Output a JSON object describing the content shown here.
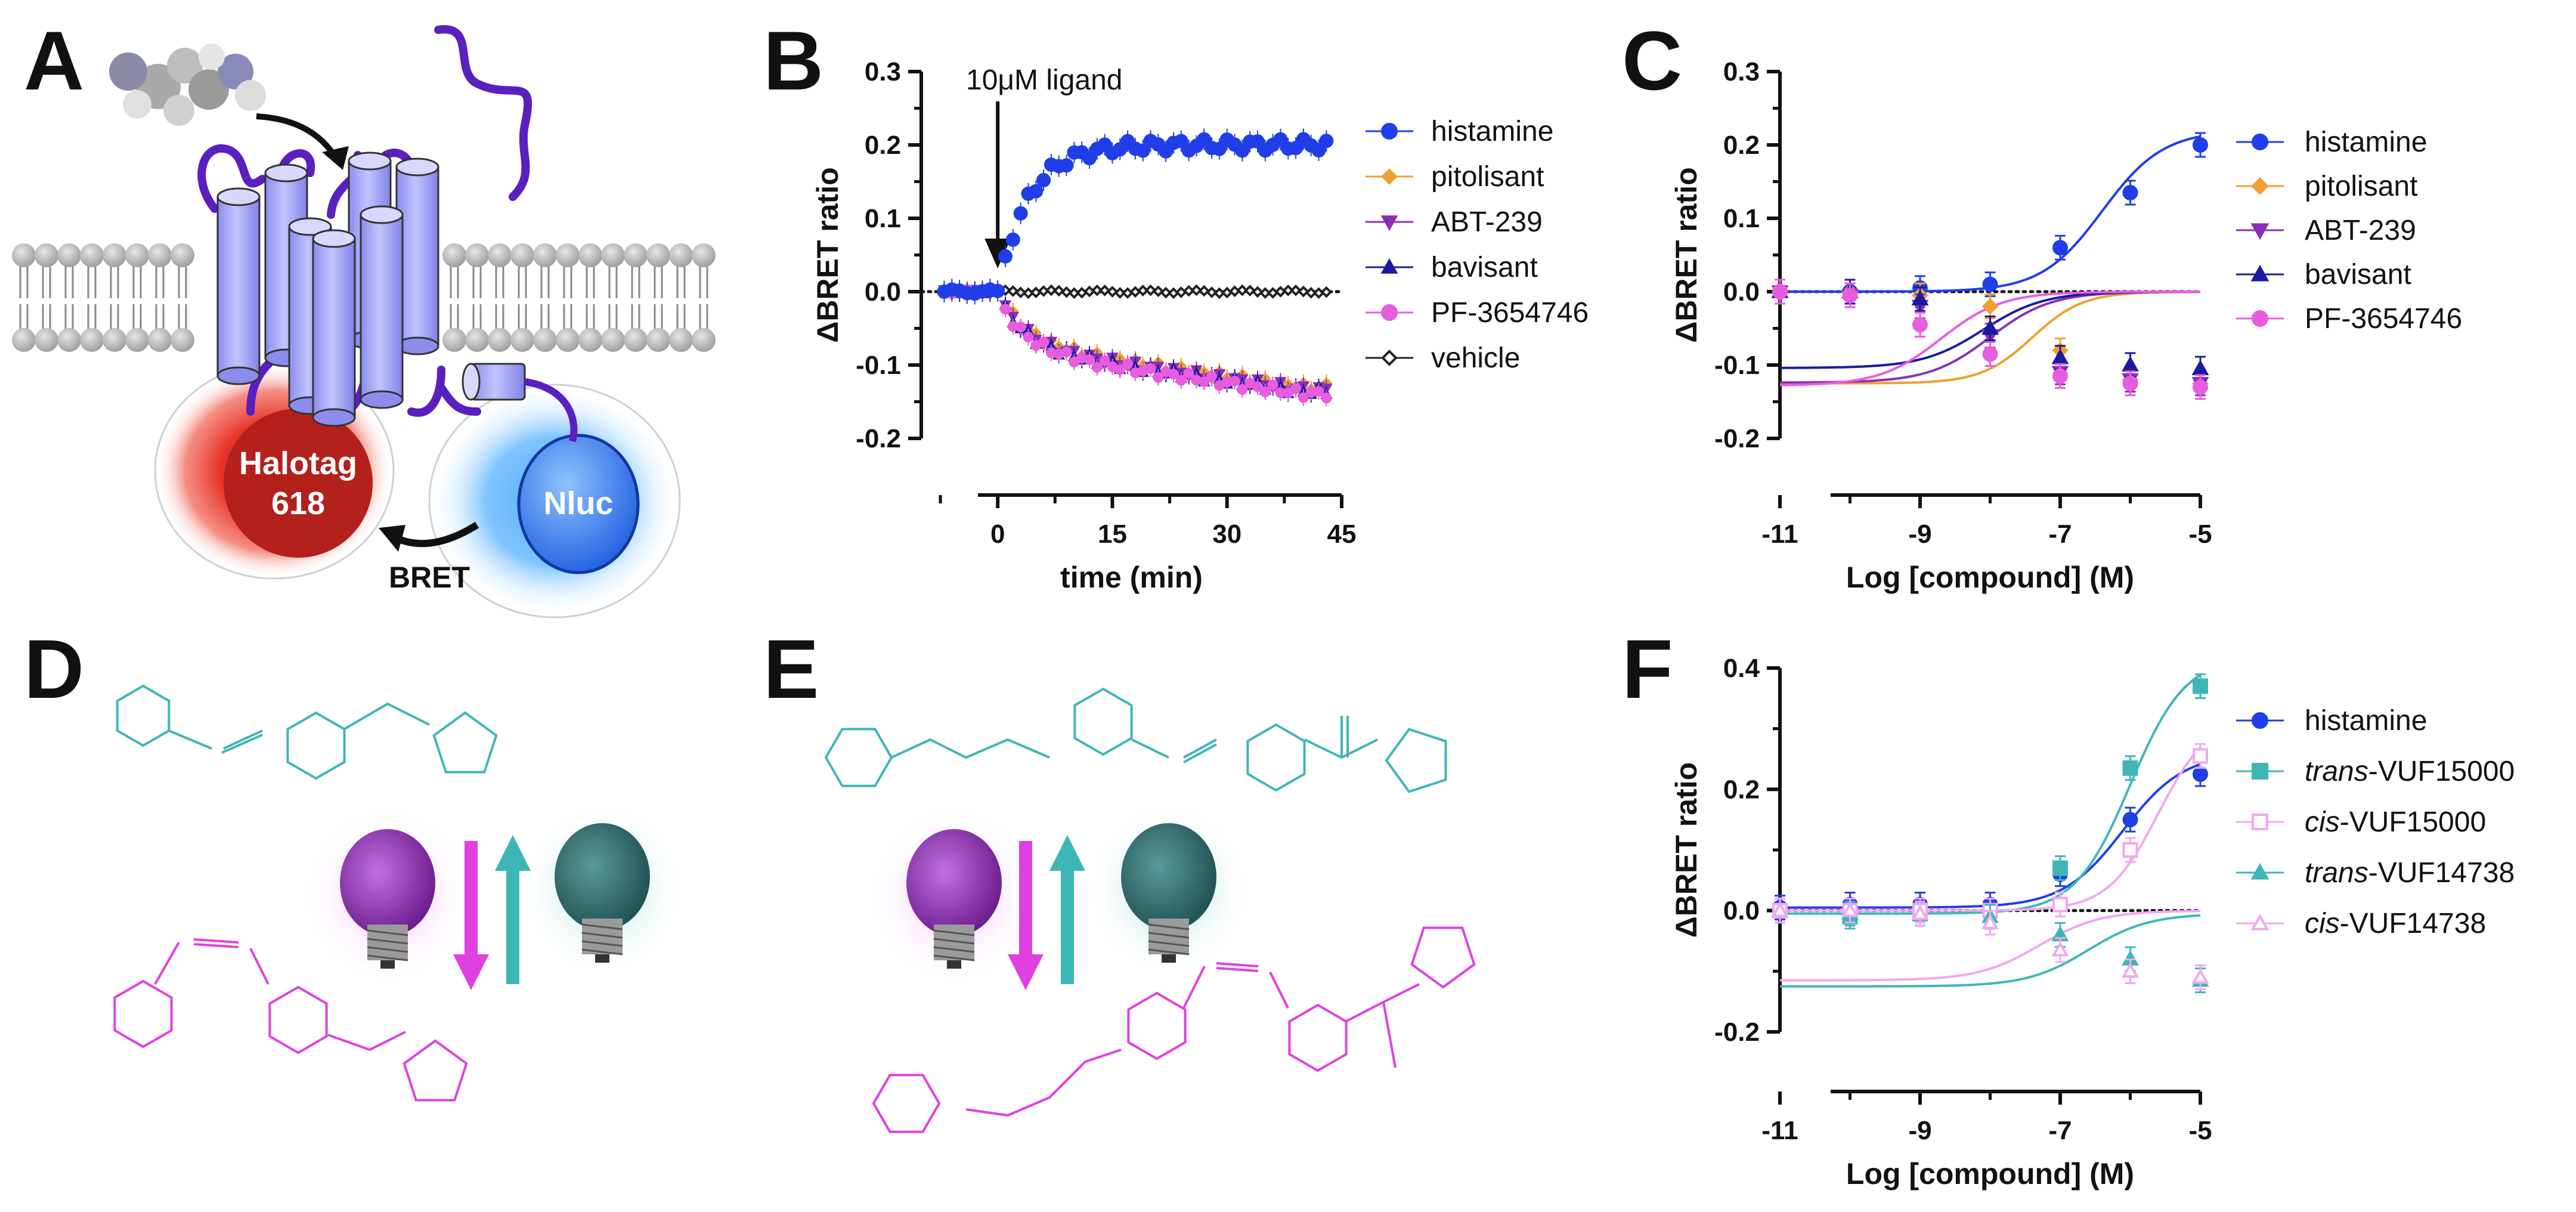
{
  "panels": {
    "A": {
      "letter": "A",
      "labels": {
        "halotag_line1": "Halotag",
        "halotag_line2": "618",
        "nluc": "Nluc",
        "bret": "BRET"
      }
    },
    "D": {
      "letter": "D"
    },
    "E": {
      "letter": "E"
    }
  },
  "colors": {
    "histamine": "#1f3ee8",
    "pitolisant": "#f0a030",
    "abt239": "#8a2fb8",
    "bavisant": "#1a1aa0",
    "pf3654746": "#e85ce0",
    "vehicle": "#222222",
    "teal": "#3fb6b6",
    "magenta": "#e040e0",
    "pink_light": "#f0a8f0",
    "receptor": "#a8a8ff",
    "loop": "#5a1fbf"
  },
  "chart_data": [
    {
      "panel": "B",
      "letter": "B",
      "type": "scatter",
      "xlabel": "time (min)",
      "ylabel": "ΔBRET ratio",
      "xlim": [
        -10,
        45
      ],
      "ylim": [
        -0.2,
        0.3
      ],
      "xticks": [
        0,
        15,
        30,
        45
      ],
      "yticks": [
        -0.2,
        -0.1,
        0.0,
        0.1,
        0.2,
        0.3
      ],
      "ytick_labels": [
        "-0.2",
        "-0.1",
        "0.0",
        "0.1",
        "0.2",
        "0.3"
      ],
      "annotation": "10μM ligand",
      "annotation_x": 0,
      "reference_line_y": 0,
      "series": [
        {
          "name": "histamine",
          "color_key": "histamine",
          "marker": "circle",
          "agonist": true
        },
        {
          "name": "pitolisant",
          "color_key": "pitolisant",
          "marker": "diamond",
          "agonist": false
        },
        {
          "name": "ABT-239",
          "color_key": "abt239",
          "marker": "triangle-down",
          "agonist": false
        },
        {
          "name": "bavisant",
          "color_key": "bavisant",
          "marker": "triangle-up",
          "agonist": false
        },
        {
          "name": "PF-3654746",
          "color_key": "pf3654746",
          "marker": "circle",
          "agonist": false
        },
        {
          "name": "vehicle",
          "color_key": "vehicle",
          "marker": "open-diamond",
          "agonist": false
        }
      ],
      "plateau": {
        "histamine": 0.2,
        "inverse": -0.13,
        "vehicle": 0.0
      }
    },
    {
      "panel": "C",
      "letter": "C",
      "type": "line",
      "xlabel": "Log [compound] (M)",
      "ylabel": "ΔBRET ratio",
      "xlim": [
        -11,
        -5
      ],
      "ylim": [
        -0.2,
        0.3
      ],
      "xticks": [
        -11,
        -9,
        -7,
        -5
      ],
      "xtick_labels": [
        "-11",
        "-9",
        "-7",
        "-5"
      ],
      "yticks": [
        -0.2,
        -0.1,
        0.0,
        0.1,
        0.2,
        0.3
      ],
      "ytick_labels": [
        "-0.2",
        "-0.1",
        "0.0",
        "0.1",
        "0.2",
        "0.3"
      ],
      "reference_line_y": 0,
      "x": [
        -11,
        -10,
        -9,
        -8,
        -7,
        -6,
        -5
      ],
      "series": [
        {
          "name": "histamine",
          "color_key": "histamine",
          "marker": "circle",
          "values": [
            0.0,
            0.0,
            0.005,
            0.01,
            0.06,
            0.135,
            0.2
          ]
        },
        {
          "name": "pitolisant",
          "color_key": "pitolisant",
          "marker": "diamond",
          "values": [
            0.0,
            0.0,
            -0.005,
            -0.02,
            -0.08,
            -0.12,
            -0.125
          ]
        },
        {
          "name": "ABT-239",
          "color_key": "abt239",
          "marker": "triangle-down",
          "values": [
            0.0,
            -0.005,
            -0.02,
            -0.06,
            -0.11,
            -0.12,
            -0.125
          ]
        },
        {
          "name": "bavisant",
          "color_key": "bavisant",
          "marker": "triangle-up",
          "values": [
            0.0,
            0.0,
            -0.01,
            -0.05,
            -0.09,
            -0.1,
            -0.105
          ]
        },
        {
          "name": "PF-3654746",
          "color_key": "pf3654746",
          "marker": "circle",
          "values": [
            0.0,
            -0.005,
            -0.045,
            -0.085,
            -0.115,
            -0.125,
            -0.13
          ]
        }
      ],
      "fits": [
        {
          "color_key": "histamine",
          "top": 0.22,
          "bottom": 0.0,
          "logEC50": -6.4,
          "hill": 1.0
        },
        {
          "color_key": "pitolisant",
          "top": 0.0,
          "bottom": -0.125,
          "logEC50": -7.4,
          "hill": 1.2
        },
        {
          "color_key": "abt239",
          "top": 0.0,
          "bottom": -0.124,
          "logEC50": -8.0,
          "hill": 1.0
        },
        {
          "color_key": "bavisant",
          "top": 0.0,
          "bottom": -0.104,
          "logEC50": -8.1,
          "hill": 1.0
        },
        {
          "color_key": "pf3654746",
          "top": 0.0,
          "bottom": -0.128,
          "logEC50": -8.7,
          "hill": 1.0
        }
      ]
    },
    {
      "panel": "F",
      "letter": "F",
      "type": "line",
      "xlabel": "Log [compound] (M)",
      "ylabel": "ΔBRET ratio",
      "xlim": [
        -11,
        -5
      ],
      "ylim": [
        -0.2,
        0.4
      ],
      "xticks": [
        -11,
        -9,
        -7,
        -5
      ],
      "xtick_labels": [
        "-11",
        "-9",
        "-7",
        "-5"
      ],
      "yticks": [
        -0.2,
        0.0,
        0.2,
        0.4
      ],
      "ytick_labels": [
        "-0.2",
        "0.0",
        "0.2",
        "0.4"
      ],
      "reference_line_y": 0,
      "x": [
        -11,
        -10,
        -9,
        -8,
        -7,
        -6,
        -5
      ],
      "series": [
        {
          "name": "histamine",
          "prefix": "",
          "suffix": "histamine",
          "color_key": "histamine",
          "marker": "circle",
          "filled": true,
          "values": [
            0.005,
            0.01,
            0.01,
            0.01,
            0.06,
            0.15,
            0.225
          ]
        },
        {
          "name": "trans-VUF15000",
          "prefix": "trans",
          "suffix": "-VUF15000",
          "color_key": "teal",
          "marker": "square",
          "filled": true,
          "values": [
            0.0,
            -0.01,
            -0.005,
            0.0,
            0.07,
            0.235,
            0.37
          ]
        },
        {
          "name": "cis-VUF15000",
          "prefix": "cis",
          "suffix": "-VUF15000",
          "color_key": "pink_light",
          "marker": "square",
          "filled": false,
          "values": [
            0.0,
            0.0,
            0.0,
            0.0,
            0.01,
            0.1,
            0.255
          ]
        },
        {
          "name": "trans-VUF14738",
          "prefix": "trans",
          "suffix": "-VUF14738",
          "color_key": "teal",
          "marker": "triangle-up",
          "filled": true,
          "values": [
            0.0,
            -0.005,
            -0.005,
            -0.01,
            -0.04,
            -0.08,
            -0.115
          ]
        },
        {
          "name": "cis-VUF14738",
          "prefix": "cis",
          "suffix": "-VUF14738",
          "color_key": "pink_light",
          "marker": "triangle-up",
          "filled": false,
          "values": [
            0.0,
            0.0,
            -0.005,
            -0.02,
            -0.065,
            -0.1,
            -0.11
          ]
        }
      ],
      "fits": [
        {
          "color_key": "histamine",
          "top": 0.26,
          "bottom": 0.005,
          "logEC50": -6.1,
          "hill": 1.0
        },
        {
          "color_key": "teal",
          "top": 0.42,
          "bottom": -0.005,
          "logEC50": -6.0,
          "hill": 1.1
        },
        {
          "color_key": "pink_light",
          "top": 0.32,
          "bottom": 0.0,
          "logEC50": -5.6,
          "hill": 1.2
        },
        {
          "color_key": "teal",
          "top": -0.005,
          "bottom": -0.125,
          "logEC50": -6.6,
          "hill": 1.0
        },
        {
          "color_key": "pink_light",
          "top": 0.0,
          "bottom": -0.115,
          "logEC50": -7.3,
          "hill": 1.0
        }
      ]
    }
  ]
}
